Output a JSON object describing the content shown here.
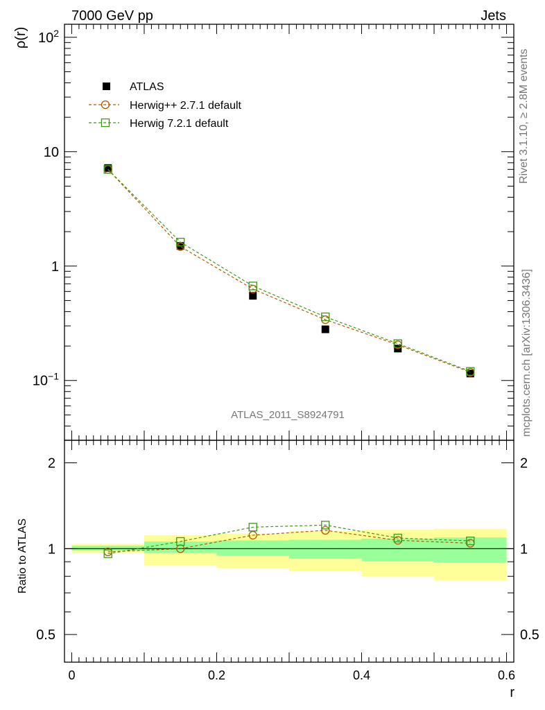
{
  "header": {
    "left_title": "7000 GeV pp",
    "right_title": "Jets"
  },
  "side_labels": {
    "upper": "Rivet 3.1.10, ≥ 2.8M events",
    "lower": "mcplots.cern.ch [arXiv:1306.3436]"
  },
  "watermark": "ATLAS_2011_S8924791",
  "colors": {
    "data": "#000000",
    "herwigpp": "#b35900",
    "herwig7": "#3a9b10",
    "band_inner": "#99ff99",
    "band_outer": "#ffff99"
  },
  "chart_data": [
    {
      "type": "line",
      "panel": "main",
      "ylabel": "ρ(r)",
      "xlim": [
        -0.01,
        0.61
      ],
      "ylim": [
        0.03,
        130
      ],
      "yscale": "log",
      "ytick_labels": [
        "10^2",
        "10",
        "1",
        "10^-1"
      ],
      "legend_position": "top-left",
      "x": [
        0.05,
        0.15,
        0.25,
        0.35,
        0.45,
        0.55
      ],
      "series": [
        {
          "name": "ATLAS",
          "marker": "filled-square",
          "values": [
            7.2,
            1.5,
            0.55,
            0.28,
            0.19,
            0.115
          ]
        },
        {
          "name": "Herwig++ 2.7.1 default",
          "marker": "open-circle",
          "line": "dashed",
          "values": [
            7.0,
            1.48,
            0.63,
            0.34,
            0.205,
            0.118
          ]
        },
        {
          "name": "Herwig 7.2.1 default",
          "marker": "open-square",
          "line": "dashed",
          "values": [
            7.0,
            1.62,
            0.67,
            0.36,
            0.21,
            0.12
          ]
        }
      ]
    },
    {
      "type": "line",
      "panel": "ratio",
      "ylabel": "Ratio to ATLAS",
      "xlabel": "r",
      "xlim": [
        -0.01,
        0.61
      ],
      "ylim": [
        0.4,
        2.4
      ],
      "yscale": "log",
      "ytick_labels": [
        "2",
        "1",
        "0.5"
      ],
      "xtick_labels": [
        "0",
        "0.2",
        "0.4",
        "0.6"
      ],
      "x": [
        0.05,
        0.15,
        0.25,
        0.35,
        0.45,
        0.55
      ],
      "bands": {
        "bin_edges": [
          0.0,
          0.1,
          0.2,
          0.3,
          0.4,
          0.5,
          0.6
        ],
        "inner": {
          "low": [
            0.985,
            0.965,
            0.945,
            0.925,
            0.905,
            0.895
          ],
          "high": [
            1.025,
            1.06,
            1.07,
            1.075,
            1.085,
            1.095
          ]
        },
        "outer": {
          "low": [
            0.97,
            0.875,
            0.855,
            0.835,
            0.8,
            0.775
          ],
          "high": [
            1.04,
            1.115,
            1.13,
            1.155,
            1.165,
            1.175
          ]
        }
      },
      "series": [
        {
          "name": "Herwig++ 2.7.1 default",
          "marker": "open-circle",
          "line": "dashed",
          "values": [
            0.975,
            1.0,
            1.115,
            1.16,
            1.07,
            1.045
          ]
        },
        {
          "name": "Herwig 7.2.1 default",
          "marker": "open-square",
          "line": "dashed",
          "values": [
            0.96,
            1.06,
            1.19,
            1.21,
            1.09,
            1.065
          ]
        }
      ]
    }
  ]
}
